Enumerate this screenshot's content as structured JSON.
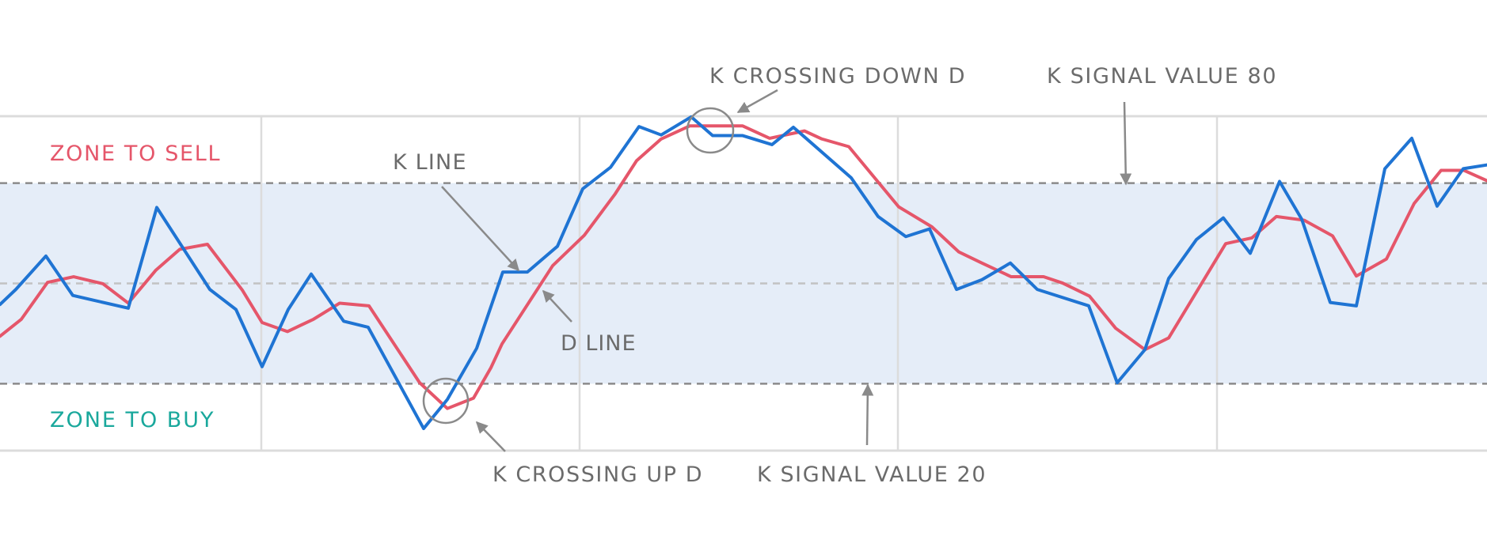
{
  "chart_data": {
    "type": "line",
    "title": "",
    "xlabel": "",
    "ylabel": "",
    "ylim": [
      0,
      100
    ],
    "xlim": [
      0,
      93.9
    ],
    "grid": true,
    "levels": {
      "upper": 80,
      "middle": 50,
      "lower": 20
    },
    "zones": {
      "sell": "ZONE TO SELL",
      "buy": "ZONE TO BUY"
    },
    "series": [
      {
        "name": "K LINE",
        "color": "#1f74d3",
        "points": [
          [
            0,
            43.7
          ],
          [
            1.0,
            48.2
          ],
          [
            2.9,
            58.2
          ],
          [
            4.6,
            46.4
          ],
          [
            8.1,
            42.6
          ],
          [
            9.9,
            72.7
          ],
          [
            13.25,
            48.2
          ],
          [
            14.9,
            42.2
          ],
          [
            16.55,
            25.1
          ],
          [
            18.2,
            42.2
          ],
          [
            19.65,
            52.8
          ],
          [
            21.7,
            38.7
          ],
          [
            23.25,
            36.9
          ],
          [
            26.75,
            6.6
          ],
          [
            28.25,
            15.3
          ],
          [
            30.1,
            30.6
          ],
          [
            31.75,
            53.4
          ],
          [
            33.3,
            53.4
          ],
          [
            35.2,
            61.1
          ],
          [
            36.8,
            78.3
          ],
          [
            38.55,
            84.7
          ],
          [
            40.35,
            96.9
          ],
          [
            41.75,
            94.4
          ],
          [
            43.65,
            99.8
          ],
          [
            45,
            94.2
          ],
          [
            46.9,
            94.2
          ],
          [
            48.75,
            91.5
          ],
          [
            50.1,
            96.7
          ],
          [
            53.75,
            81.6
          ],
          [
            55.45,
            70.0
          ],
          [
            57.2,
            64.0
          ],
          [
            58.7,
            66.3
          ],
          [
            60.4,
            48.2
          ],
          [
            62,
            51.1
          ],
          [
            63.8,
            56.1
          ],
          [
            65.5,
            48.2
          ],
          [
            68.75,
            43.3
          ],
          [
            70.55,
            20.3
          ],
          [
            72.3,
            30.2
          ],
          [
            73.8,
            51.5
          ],
          [
            75.55,
            63.1
          ],
          [
            77.25,
            69.6
          ],
          [
            78.95,
            59.0
          ],
          [
            80.8,
            80.5
          ],
          [
            82.2,
            69.2
          ],
          [
            84,
            44.3
          ],
          [
            85.65,
            43.3
          ],
          [
            87.45,
            84.3
          ],
          [
            89.15,
            93.4
          ],
          [
            90.75,
            73.1
          ],
          [
            92.4,
            84.3
          ],
          [
            94,
            85.5
          ]
        ]
      },
      {
        "name": "D LINE",
        "color": "#e5566a",
        "points": [
          [
            0,
            34.2
          ],
          [
            1.35,
            39.3
          ],
          [
            3,
            50.3
          ],
          [
            4.65,
            52.0
          ],
          [
            6.5,
            49.9
          ],
          [
            8.1,
            44.1
          ],
          [
            9.85,
            54.0
          ],
          [
            11.35,
            60.2
          ],
          [
            13.1,
            61.7
          ],
          [
            15.3,
            48.0
          ],
          [
            16.55,
            38.3
          ],
          [
            18.15,
            35.6
          ],
          [
            19.8,
            39.3
          ],
          [
            21.45,
            44.1
          ],
          [
            23.3,
            43.3
          ],
          [
            26.5,
            20.3
          ],
          [
            28.25,
            12.6
          ],
          [
            29.9,
            15.7
          ],
          [
            31,
            24.8
          ],
          [
            31.7,
            31.9
          ],
          [
            34.9,
            55.3
          ],
          [
            36.9,
            64.4
          ],
          [
            38.85,
            76.8
          ],
          [
            40.2,
            86.7
          ],
          [
            41.75,
            93.2
          ],
          [
            43.55,
            97.1
          ],
          [
            46.9,
            97.1
          ],
          [
            48.6,
            93.4
          ],
          [
            50.8,
            95.6
          ],
          [
            51.9,
            93.2
          ],
          [
            53.6,
            90.9
          ],
          [
            56.75,
            72.9
          ],
          [
            58.85,
            66.9
          ],
          [
            60.55,
            59.4
          ],
          [
            62,
            56.1
          ],
          [
            63.85,
            52.0
          ],
          [
            65.9,
            52.0
          ],
          [
            67.1,
            50.1
          ],
          [
            68.8,
            46.2
          ],
          [
            70.45,
            36.6
          ],
          [
            72.3,
            30.2
          ],
          [
            73.8,
            33.7
          ],
          [
            77.4,
            61.9
          ],
          [
            79.05,
            63.6
          ],
          [
            80.6,
            70.0
          ],
          [
            82.35,
            68.9
          ],
          [
            84.15,
            64.2
          ],
          [
            85.65,
            52.2
          ],
          [
            87.55,
            57.3
          ],
          [
            89.3,
            73.9
          ],
          [
            91,
            83.8
          ],
          [
            92.45,
            83.8
          ],
          [
            94,
            80.5
          ]
        ]
      }
    ],
    "annotations": {
      "k_line": "K LINE",
      "d_line": "D LINE",
      "k_cross_down": "K CROSSING DOWN D",
      "k_cross_up": "K CROSSING UP D",
      "k_signal_80": "K SIGNAL VALUE 80",
      "k_signal_20": "K SIGNAL VALUE 20"
    }
  },
  "colors": {
    "band": "#e5edf8",
    "sell_text": "#e5566a",
    "buy_text": "#1aa89c",
    "annotation": "#6b6b6b",
    "arrow": "#8a8a8a",
    "grid": "#dcdcdc"
  }
}
